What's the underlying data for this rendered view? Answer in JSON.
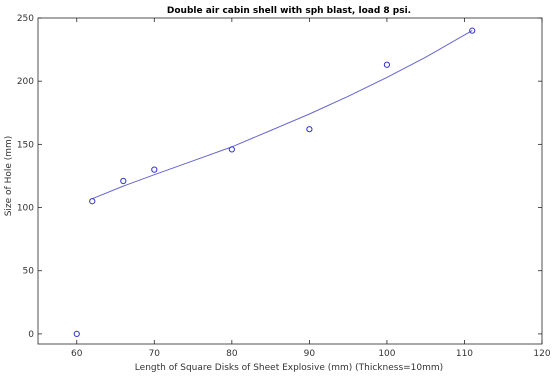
{
  "chart_data": {
    "type": "scatter",
    "title": "Double air cabin shell with sph blast, load 8 psi.",
    "xlabel": "Length of Square Disks of Sheet Explosive (mm) (Thickness=10mm)",
    "ylabel": "Size of Hole (mm)",
    "xlim": [
      55,
      120
    ],
    "ylim": [
      -8,
      250
    ],
    "xticks": [
      60,
      70,
      80,
      90,
      100,
      110,
      120
    ],
    "yticks": [
      0,
      50,
      100,
      150,
      200,
      250
    ],
    "grid": false,
    "legend": "none",
    "series": [
      {
        "marker": "circle",
        "color": "#3333cc",
        "x": [
          60,
          62,
          66,
          70,
          80,
          90,
          100,
          111
        ],
        "y": [
          0,
          105,
          121,
          130,
          146,
          162,
          213,
          240
        ]
      }
    ],
    "fit": {
      "color": "#6666cc",
      "x": [
        62,
        66,
        70,
        75,
        80,
        85,
        90,
        95,
        100,
        105,
        111
      ],
      "y": [
        107,
        117,
        126,
        137,
        148,
        161,
        174,
        188,
        203,
        219,
        240
      ]
    }
  }
}
